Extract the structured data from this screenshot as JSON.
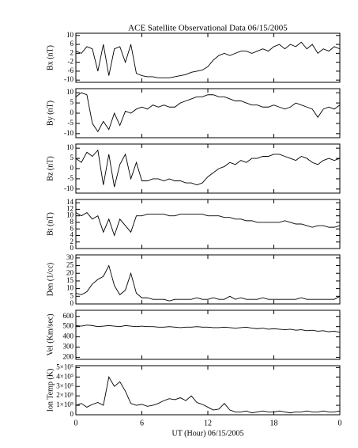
{
  "chart_data": [
    {
      "type": "line",
      "title": "ACE Satellite Observational Data   06/15/2005",
      "ylabel": "Bx (nT)",
      "x": [
        0,
        0.5,
        1,
        1.5,
        2,
        2.5,
        3,
        3.5,
        4,
        4.5,
        5,
        5.5,
        6,
        6.5,
        7,
        7.5,
        8,
        8.5,
        9,
        9.5,
        10,
        10.5,
        11,
        11.5,
        12,
        12.5,
        13,
        13.5,
        14,
        14.5,
        15,
        15.5,
        16,
        16.5,
        17,
        17.5,
        18,
        18.5,
        19,
        19.5,
        20,
        20.5,
        21,
        21.5,
        22,
        22.5,
        23,
        23.5,
        24
      ],
      "values": [
        3,
        2,
        5,
        4,
        -6,
        6,
        -8,
        4,
        5,
        -2,
        6,
        -7,
        -8,
        -8.5,
        -8.5,
        -9,
        -9,
        -9,
        -8.5,
        -8,
        -7.5,
        -6.5,
        -6,
        -5.5,
        -4,
        -1,
        1,
        2,
        1,
        2,
        3,
        3,
        2,
        3,
        4,
        3,
        5,
        6,
        4,
        6,
        5,
        7,
        4,
        6,
        2,
        4,
        3,
        5,
        4
      ],
      "color": "#000000",
      "xlim": [
        0,
        24
      ],
      "xticks": [
        0,
        6,
        12,
        18,
        {
          "value": 24,
          "label": "0"
        }
      ],
      "ylim": [
        -11,
        11
      ],
      "yticks": [
        -10,
        -6,
        -2,
        2,
        6,
        10
      ]
    },
    {
      "type": "line",
      "ylabel": "By (nT)",
      "x": [
        0,
        0.5,
        1,
        1.5,
        2,
        2.5,
        3,
        3.5,
        4,
        4.5,
        5,
        5.5,
        6,
        6.5,
        7,
        7.5,
        8,
        8.5,
        9,
        9.5,
        10,
        10.5,
        11,
        11.5,
        12,
        12.5,
        13,
        13.5,
        14,
        14.5,
        15,
        15.5,
        16,
        16.5,
        17,
        17.5,
        18,
        18.5,
        19,
        19.5,
        20,
        20.5,
        21,
        21.5,
        22,
        22.5,
        23,
        23.5,
        24
      ],
      "values": [
        8,
        10,
        9,
        -5,
        -9,
        -4,
        -8,
        0,
        -6,
        1,
        0,
        2,
        3,
        2,
        4,
        3,
        4,
        3,
        3,
        5,
        6,
        7,
        8,
        8,
        9,
        9,
        8,
        8,
        7,
        6,
        6,
        5,
        4,
        4,
        3,
        3,
        4,
        3,
        2,
        3,
        5,
        4,
        3,
        2,
        -2,
        2,
        3,
        2,
        4
      ],
      "color": "#000000",
      "xlim": [
        0,
        24
      ],
      "xticks": [
        0,
        6,
        12,
        18,
        {
          "value": 24,
          "label": "0"
        }
      ],
      "ylim": [
        -12,
        12
      ],
      "yticks": [
        -10,
        -5,
        0,
        5,
        10
      ]
    },
    {
      "type": "line",
      "ylabel": "Bz (nT)",
      "x": [
        0,
        0.5,
        1,
        1.5,
        2,
        2.5,
        3,
        3.5,
        4,
        4.5,
        5,
        5.5,
        6,
        6.5,
        7,
        7.5,
        8,
        8.5,
        9,
        9.5,
        10,
        10.5,
        11,
        11.5,
        12,
        12.5,
        13,
        13.5,
        14,
        14.5,
        15,
        15.5,
        16,
        16.5,
        17,
        17.5,
        18,
        18.5,
        19,
        19.5,
        20,
        20.5,
        21,
        21.5,
        22,
        22.5,
        23,
        23.5,
        24
      ],
      "values": [
        5,
        3,
        8,
        6,
        9,
        -8,
        7,
        -9,
        2,
        7,
        -5,
        3,
        -6,
        -6,
        -5,
        -5,
        -6,
        -5,
        -6,
        -6,
        -7,
        -7,
        -8,
        -7,
        -4,
        -2,
        0,
        1,
        3,
        2,
        4,
        3,
        5,
        5,
        6,
        6,
        7,
        7,
        6,
        5,
        4,
        6,
        5,
        3,
        2,
        4,
        5,
        4,
        5
      ],
      "color": "#000000",
      "xlim": [
        0,
        24
      ],
      "xticks": [
        0,
        6,
        12,
        18,
        {
          "value": 24,
          "label": "0"
        }
      ],
      "ylim": [
        -12,
        12
      ],
      "yticks": [
        -10,
        -5,
        0,
        5,
        10
      ]
    },
    {
      "type": "line",
      "ylabel": "Bt (nT)",
      "x": [
        0,
        0.5,
        1,
        1.5,
        2,
        2.5,
        3,
        3.5,
        4,
        4.5,
        5,
        5.5,
        6,
        6.5,
        7,
        7.5,
        8,
        8.5,
        9,
        9.5,
        10,
        10.5,
        11,
        11.5,
        12,
        12.5,
        13,
        13.5,
        14,
        14.5,
        15,
        15.5,
        16,
        16.5,
        17,
        17.5,
        18,
        18.5,
        19,
        19.5,
        20,
        20.5,
        21,
        21.5,
        22,
        22.5,
        23,
        23.5,
        24
      ],
      "values": [
        11,
        10,
        11,
        9,
        10,
        5,
        9,
        4,
        9,
        7,
        5,
        10,
        10,
        10.5,
        10.5,
        10.5,
        10.5,
        10,
        10,
        10.5,
        10.5,
        10.5,
        10.5,
        10.5,
        10,
        10,
        10,
        9.5,
        9.5,
        9,
        9,
        8.5,
        8.5,
        8,
        8,
        8,
        8,
        8,
        8.5,
        8,
        7.5,
        7.5,
        7,
        6.5,
        7,
        7,
        6.5,
        6.5,
        7
      ],
      "color": "#000000",
      "xlim": [
        0,
        24
      ],
      "xticks": [
        0,
        6,
        12,
        18,
        {
          "value": 24,
          "label": "0"
        }
      ],
      "ylim": [
        0,
        15
      ],
      "yticks": [
        0,
        2,
        4,
        6,
        8,
        10,
        12,
        14
      ]
    },
    {
      "type": "line",
      "ylabel": "Den (1/cc)",
      "x": [
        0,
        0.5,
        1,
        1.5,
        2,
        2.5,
        3,
        3.5,
        4,
        4.5,
        5,
        5.5,
        6,
        6.5,
        7,
        7.5,
        8,
        8.5,
        9,
        9.5,
        10,
        10.5,
        11,
        11.5,
        12,
        12.5,
        13,
        13.5,
        14,
        14.5,
        15,
        15.5,
        16,
        16.5,
        17,
        17.5,
        18,
        18.5,
        19,
        19.5,
        20,
        20.5,
        21,
        21.5,
        22,
        22.5,
        23,
        23.5,
        24
      ],
      "values": [
        7,
        6,
        8,
        13,
        16,
        18,
        25,
        12,
        6,
        9,
        20,
        7,
        4,
        4,
        3,
        3,
        3,
        2,
        3,
        3,
        3,
        3,
        4,
        3,
        3,
        4,
        3,
        3,
        5,
        3,
        4,
        3,
        3,
        3,
        4,
        3,
        3,
        3,
        3,
        3,
        3,
        4,
        3,
        3,
        3,
        3,
        3,
        3,
        5
      ],
      "color": "#000000",
      "xlim": [
        0,
        24
      ],
      "xticks": [
        0,
        6,
        12,
        18,
        {
          "value": 24,
          "label": "0"
        }
      ],
      "ylim": [
        0,
        32
      ],
      "yticks": [
        0,
        5,
        10,
        15,
        20,
        25,
        30
      ]
    },
    {
      "type": "line",
      "ylabel": "Vel (Km/sec)",
      "x": [
        0,
        0.5,
        1,
        1.5,
        2,
        2.5,
        3,
        3.5,
        4,
        4.5,
        5,
        5.5,
        6,
        6.5,
        7,
        7.5,
        8,
        8.5,
        9,
        9.5,
        10,
        10.5,
        11,
        11.5,
        12,
        12.5,
        13,
        13.5,
        14,
        14.5,
        15,
        15.5,
        16,
        16.5,
        17,
        17.5,
        18,
        18.5,
        19,
        19.5,
        20,
        20.5,
        21,
        21.5,
        22,
        22.5,
        23,
        23.5,
        24
      ],
      "values": [
        510,
        505,
        515,
        510,
        500,
        505,
        510,
        505,
        500,
        510,
        505,
        500,
        505,
        500,
        500,
        495,
        495,
        500,
        495,
        490,
        495,
        495,
        500,
        495,
        495,
        490,
        490,
        495,
        490,
        485,
        490,
        495,
        485,
        480,
        485,
        475,
        480,
        475,
        470,
        475,
        465,
        470,
        460,
        465,
        455,
        460,
        450,
        455,
        445
      ],
      "color": "#000000",
      "xlim": [
        0,
        24
      ],
      "xticks": [
        0,
        6,
        12,
        18,
        {
          "value": 24,
          "label": "0"
        }
      ],
      "ylim": [
        180,
        660
      ],
      "yticks": [
        200,
        300,
        400,
        500,
        600
      ]
    },
    {
      "type": "line",
      "ylabel": "Ion Temp (K)",
      "xlabel": "UT (Hour)   06/15/2005",
      "x": [
        0,
        0.5,
        1,
        1.5,
        2,
        2.5,
        3,
        3.5,
        4,
        4.5,
        5,
        5.5,
        6,
        6.5,
        7,
        7.5,
        8,
        8.5,
        9,
        9.5,
        10,
        10.5,
        11,
        11.5,
        12,
        12.5,
        13,
        13.5,
        14,
        14.5,
        15,
        15.5,
        16,
        16.5,
        17,
        17.5,
        18,
        18.5,
        19,
        19.5,
        20,
        20.5,
        21,
        21.5,
        22,
        22.5,
        23,
        23.5,
        24
      ],
      "values": [
        100000,
        120000,
        80000,
        110000,
        130000,
        100000,
        400000,
        300000,
        350000,
        250000,
        120000,
        100000,
        110000,
        90000,
        100000,
        120000,
        150000,
        170000,
        160000,
        180000,
        150000,
        200000,
        130000,
        110000,
        80000,
        50000,
        60000,
        120000,
        50000,
        30000,
        30000,
        40000,
        20000,
        30000,
        40000,
        30000,
        30000,
        40000,
        30000,
        20000,
        30000,
        30000,
        40000,
        30000,
        30000,
        40000,
        30000,
        30000,
        40000
      ],
      "color": "#000000",
      "xlim": [
        0,
        24
      ],
      "xticks": [
        0,
        6,
        12,
        18,
        {
          "value": 24,
          "label": "0"
        }
      ],
      "ylim": [
        0,
        520000
      ],
      "yticks": [
        0,
        {
          "value": 100000,
          "label": "1×10⁵"
        },
        {
          "value": 200000,
          "label": "2×10⁵"
        },
        {
          "value": 300000,
          "label": "3×10⁵"
        },
        {
          "value": 400000,
          "label": "4×10⁵"
        },
        {
          "value": 500000,
          "label": "5×10⁵"
        }
      ]
    }
  ]
}
